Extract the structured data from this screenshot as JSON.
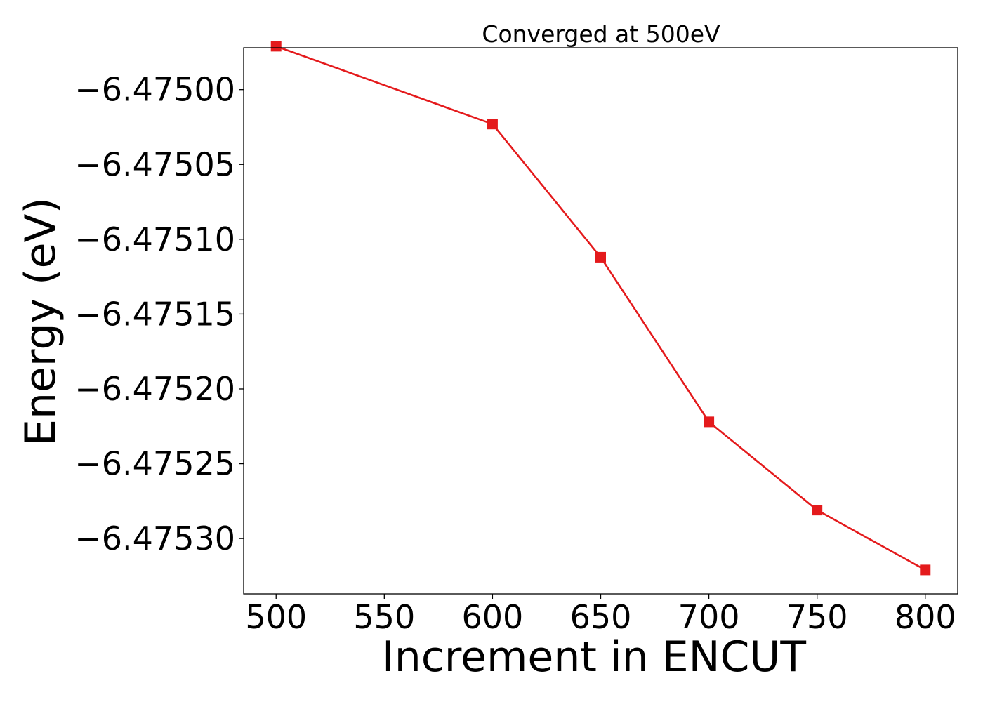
{
  "chart_data": {
    "type": "line",
    "title": "Converged at 500eV",
    "xlabel": "Increment in ENCUT",
    "ylabel": "Energy (eV)",
    "xlim": [
      485,
      815
    ],
    "ylim": [
      -6.475337,
      -6.474972
    ],
    "xticks": [
      500,
      550,
      600,
      650,
      700,
      750,
      800
    ],
    "xtick_labels": [
      "500",
      "550",
      "600",
      "650",
      "700",
      "750",
      "800"
    ],
    "yticks": [
      -6.475,
      -6.47505,
      -6.4751,
      -6.47515,
      -6.4752,
      -6.47525,
      -6.4753
    ],
    "ytick_labels": [
      "−6.47500",
      "−6.47505",
      "−6.47510",
      "−6.47515",
      "−6.47520",
      "−6.47525",
      "−6.47530"
    ],
    "grid": false,
    "series": [
      {
        "color": "#e41a1c",
        "marker": "square",
        "x": [
          500,
          600,
          650,
          700,
          750,
          800
        ],
        "y": [
          -6.474971,
          -6.475023,
          -6.475112,
          -6.475222,
          -6.475281,
          -6.475321
        ]
      }
    ]
  }
}
